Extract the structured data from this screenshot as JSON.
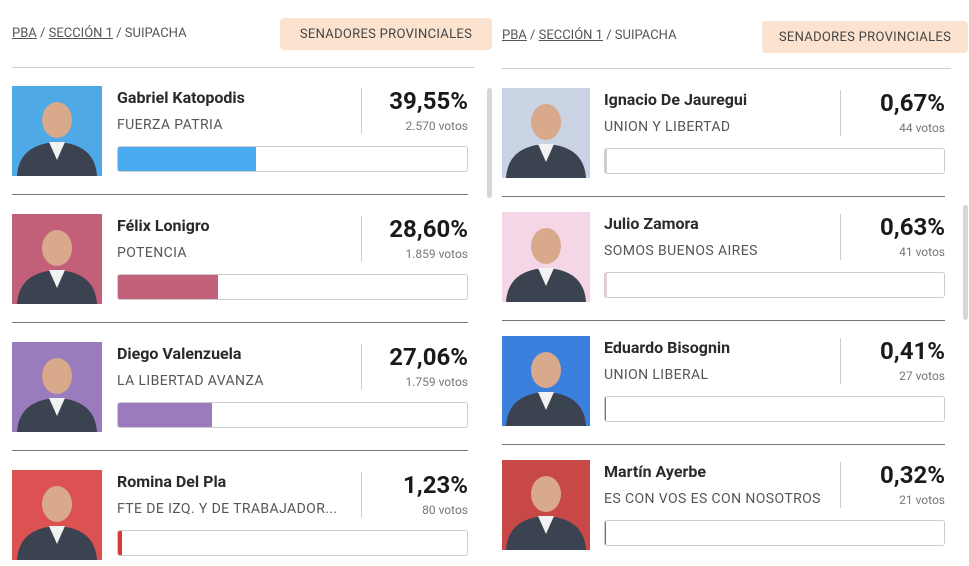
{
  "panels": [
    {
      "breadcrumb": [
        "PBA",
        "SECCIÓN 1",
        "SUIPACHA"
      ],
      "separator": "/",
      "badge": "SENADORES PROVINCIALES",
      "candidates": [
        {
          "name": "Gabriel Katopodis",
          "party": "FUERZA PATRIA",
          "percent": 39.55,
          "percent_label": "39,55%",
          "votes": "2.570 votos",
          "color": "#4aaaf0",
          "photo_bg": "#4ea9e6"
        },
        {
          "name": "Félix Lonigro",
          "party": "POTENCIA",
          "percent": 28.6,
          "percent_label": "28,60%",
          "votes": "1.859 votos",
          "color": "#c4607a",
          "photo_bg": "#c45f7a"
        },
        {
          "name": "Diego Valenzuela",
          "party": "LA LIBERTAD AVANZA",
          "percent": 27.06,
          "percent_label": "27,06%",
          "votes": "1.759 votos",
          "color": "#9b7bbd",
          "photo_bg": "#9a7bbd"
        },
        {
          "name": "Romina Del Pla",
          "party": "FTE DE IZQ. Y DE TRABAJADOR...",
          "percent": 1.23,
          "percent_label": "1,23%",
          "votes": "80 votos",
          "color": "#d83b3b",
          "photo_bg": "#dc5252"
        }
      ]
    },
    {
      "breadcrumb": [
        "PBA",
        "SECCIÓN 1",
        "SUIPACHA"
      ],
      "separator": "/",
      "badge": "SENADORES PROVINCIALES",
      "candidates": [
        {
          "name": "Ignacio De Jauregui",
          "party": "UNION Y LIBERTAD",
          "percent": 0.67,
          "percent_label": "0,67%",
          "votes": "44 votos",
          "color": "#c9cdd6",
          "photo_bg": "#c9d3e4"
        },
        {
          "name": "Julio Zamora",
          "party": "SOMOS BUENOS AIRES",
          "percent": 0.63,
          "percent_label": "0,63%",
          "votes": "41 votos",
          "color": "#f0c8dc",
          "photo_bg": "#f4d6e6"
        },
        {
          "name": "Eduardo Bisognin",
          "party": "UNION LIBERAL",
          "percent": 0.41,
          "percent_label": "0,41%",
          "votes": "27 votos",
          "color": "#3b7fd8",
          "photo_bg": "#3a80dc"
        },
        {
          "name": "Martín Ayerbe",
          "party": "ES CON VOS ES CON NOSOTROS",
          "percent": 0.32,
          "percent_label": "0,32%",
          "votes": "21 votos",
          "color": "#c94a4a",
          "photo_bg": "#c84848"
        }
      ]
    }
  ]
}
